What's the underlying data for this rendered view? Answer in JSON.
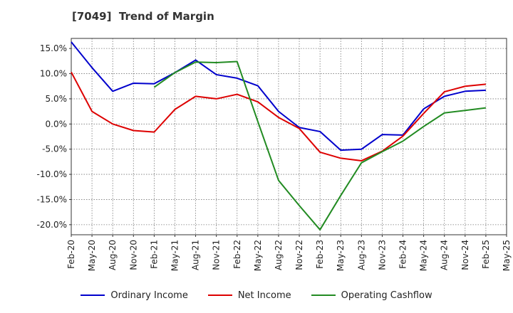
{
  "title": "[7049]  Trend of Margin",
  "chart_data": {
    "type": "line",
    "title": "[7049]  Trend of Margin",
    "xlabel": "",
    "ylabel": "",
    "ylim": [
      -22,
      17
    ],
    "yticks": [
      15,
      10,
      5,
      0,
      -5,
      -10,
      -15,
      -20
    ],
    "ytick_labels": [
      "15.0%",
      "10.0%",
      "5.0%",
      "0.0%",
      "-5.0%",
      "-10.0%",
      "-15.0%",
      "-20.0%"
    ],
    "grid": true,
    "legend_position": "bottom",
    "categories": [
      "Feb-20",
      "May-20",
      "Aug-20",
      "Nov-20",
      "Feb-21",
      "May-21",
      "Aug-21",
      "Nov-21",
      "Feb-22",
      "May-22",
      "Aug-22",
      "Nov-22",
      "Feb-23",
      "May-23",
      "Aug-23",
      "Nov-23",
      "Feb-24",
      "May-24",
      "Aug-24",
      "Nov-24",
      "Feb-25",
      "May-25"
    ],
    "series": [
      {
        "name": "Ordinary Income",
        "color": "#0000cc",
        "values": [
          16.3,
          11.2,
          6.5,
          8.1,
          8.0,
          10.2,
          12.7,
          9.8,
          9.1,
          7.6,
          2.5,
          -0.7,
          -1.5,
          -5.2,
          -5.0,
          -2.1,
          -2.2,
          3.0,
          5.5,
          6.5,
          6.7,
          null
        ]
      },
      {
        "name": "Net Income",
        "color": "#dd0000",
        "values": [
          10.3,
          2.5,
          0.0,
          -1.3,
          -1.6,
          2.9,
          5.5,
          5.0,
          5.9,
          4.4,
          1.3,
          -0.9,
          -5.6,
          -6.8,
          -7.3,
          -5.4,
          -2.4,
          2.1,
          6.4,
          7.5,
          7.9,
          null
        ]
      },
      {
        "name": "Operating Cashflow",
        "color": "#228b22",
        "values": [
          null,
          null,
          null,
          null,
          7.3,
          10.2,
          12.3,
          12.2,
          12.4,
          0.5,
          -11.2,
          -16.2,
          -21.0,
          -14.2,
          -7.7,
          -5.5,
          -3.4,
          -0.5,
          2.2,
          2.7,
          3.2,
          null
        ]
      }
    ]
  }
}
